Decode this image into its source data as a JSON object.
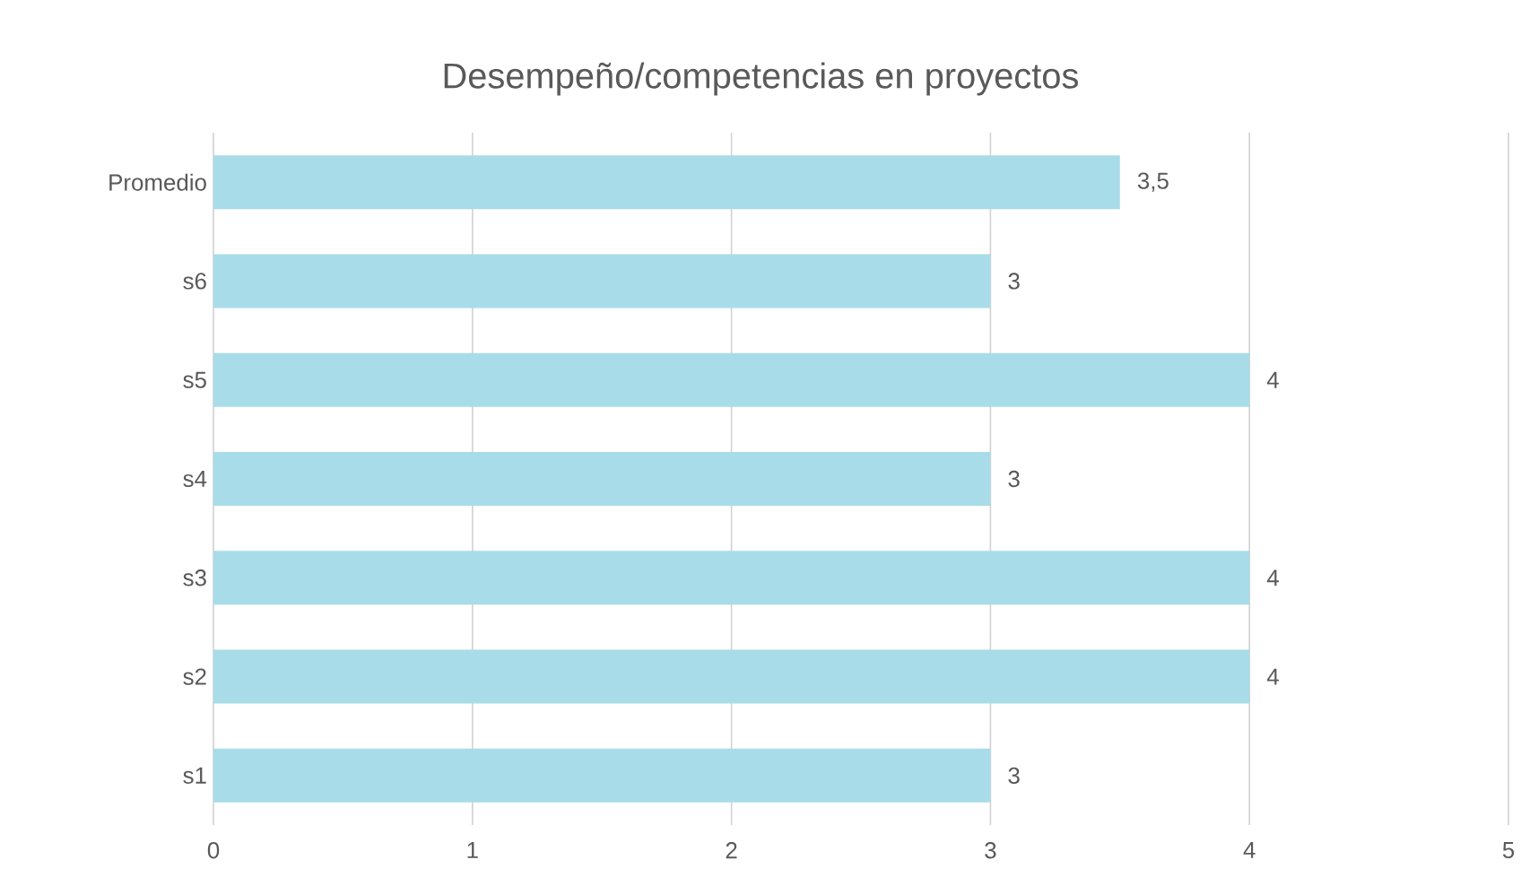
{
  "chart_data": {
    "type": "bar",
    "orientation": "horizontal",
    "title": "Desempeño/competencias  en proyectos",
    "categories": [
      "Promedio",
      "s6",
      "s5",
      "s4",
      "s3",
      "s2",
      "s1"
    ],
    "values": [
      3.5,
      3,
      4,
      3,
      4,
      4,
      3
    ],
    "value_labels": [
      "3,5",
      "3",
      "4",
      "3",
      "4",
      "4",
      "3"
    ],
    "color": "#a8dce8",
    "xlim": [
      0,
      5
    ],
    "xticks": [
      0,
      1,
      2,
      3,
      4,
      5
    ],
    "grid": "x"
  }
}
